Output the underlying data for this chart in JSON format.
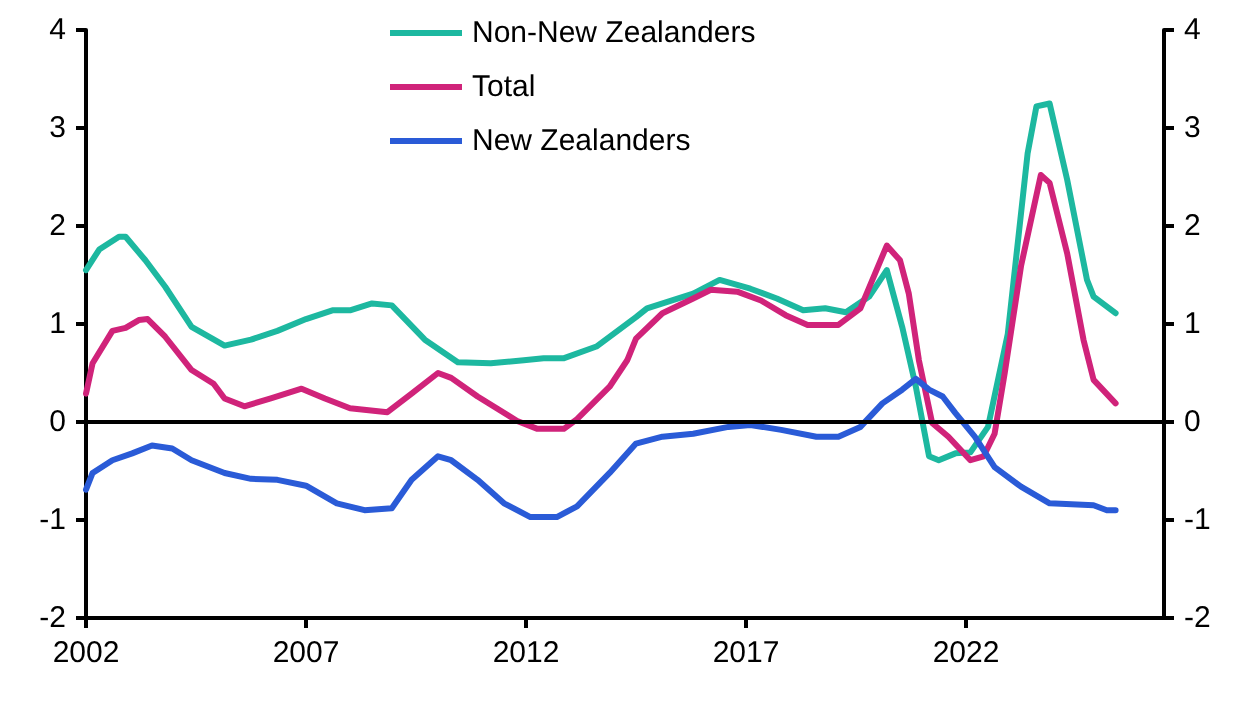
{
  "chart_data": {
    "type": "line",
    "xlim": [
      2002,
      2026.5
    ],
    "xticks": [
      2002,
      2007,
      2012,
      2017,
      2022
    ],
    "ylim": [
      -2,
      4
    ],
    "yticks": [
      -2,
      -1,
      0,
      1,
      2,
      3,
      4
    ],
    "y2lim": [
      -2,
      4
    ],
    "y2ticks": [
      -2,
      -1,
      0,
      1,
      2,
      3,
      4
    ],
    "grid": false,
    "legend": "top",
    "marker": "none",
    "line_style": "solid",
    "ref_lines": [
      {
        "axis": "y",
        "value": 0,
        "color": "#000000"
      }
    ],
    "series": [
      {
        "name": "Non-New Zealanders",
        "color": "#1db8a0",
        "x": [
          2002.0,
          2002.3,
          2002.75,
          2002.9,
          2003.35,
          2003.8,
          2004.4,
          2005.15,
          2005.75,
          2006.35,
          2007.0,
          2007.6,
          2008.0,
          2008.5,
          2008.95,
          2009.7,
          2010.45,
          2011.2,
          2011.95,
          2012.4,
          2012.85,
          2013.6,
          2014.5,
          2014.75,
          2015.8,
          2016.4,
          2017.1,
          2017.7,
          2018.3,
          2018.8,
          2019.27,
          2019.8,
          2020.2,
          2020.55,
          2020.86,
          2021.16,
          2021.38,
          2021.76,
          2022.1,
          2022.5,
          2022.95,
          2023.4,
          2023.6,
          2023.9,
          2024.3,
          2024.75,
          2024.9,
          2025.4
        ],
        "values": [
          1.55,
          1.76,
          1.89,
          1.89,
          1.65,
          1.38,
          0.97,
          0.78,
          0.84,
          0.93,
          1.05,
          1.14,
          1.14,
          1.21,
          1.19,
          0.84,
          0.61,
          0.6,
          0.63,
          0.65,
          0.65,
          0.77,
          1.07,
          1.16,
          1.31,
          1.45,
          1.36,
          1.26,
          1.14,
          1.16,
          1.12,
          1.28,
          1.55,
          0.97,
          0.36,
          -0.35,
          -0.39,
          -0.32,
          -0.31,
          -0.05,
          0.9,
          2.74,
          3.22,
          3.25,
          2.47,
          1.45,
          1.28,
          1.11
        ]
      },
      {
        "name": "Total",
        "color": "#d0237a",
        "x": [
          2002.0,
          2002.15,
          2002.6,
          2002.9,
          2003.2,
          2003.4,
          2003.8,
          2004.4,
          2004.9,
          2005.15,
          2005.6,
          2006.2,
          2006.9,
          2007.43,
          2008.0,
          2008.85,
          2009.4,
          2010.0,
          2010.3,
          2010.9,
          2011.8,
          2012.26,
          2012.86,
          2013.16,
          2013.9,
          2014.3,
          2014.5,
          2015.1,
          2015.8,
          2016.2,
          2016.8,
          2017.34,
          2017.9,
          2018.4,
          2019.1,
          2019.6,
          2020.2,
          2020.5,
          2020.7,
          2020.93,
          2021.23,
          2021.6,
          2022.1,
          2022.4,
          2022.65,
          2022.88,
          2023.25,
          2023.7,
          2023.9,
          2024.3,
          2024.67,
          2024.9,
          2025.4
        ],
        "values": [
          0.29,
          0.6,
          0.93,
          0.96,
          1.04,
          1.05,
          0.87,
          0.53,
          0.39,
          0.24,
          0.16,
          0.24,
          0.34,
          0.24,
          0.14,
          0.1,
          0.29,
          0.5,
          0.45,
          0.26,
          0.01,
          -0.07,
          -0.07,
          0.03,
          0.36,
          0.63,
          0.85,
          1.11,
          1.26,
          1.35,
          1.33,
          1.24,
          1.09,
          0.99,
          0.99,
          1.16,
          1.8,
          1.65,
          1.31,
          0.63,
          -0.01,
          -0.15,
          -0.39,
          -0.35,
          -0.12,
          0.5,
          1.59,
          2.52,
          2.44,
          1.72,
          0.84,
          0.43,
          0.19
        ]
      },
      {
        "name": "New Zealanders",
        "color": "#2a5bd7",
        "x": [
          2002.0,
          2002.15,
          2002.6,
          2003.05,
          2003.5,
          2003.96,
          2004.4,
          2005.15,
          2005.75,
          2006.35,
          2007.0,
          2007.7,
          2008.33,
          2008.95,
          2009.4,
          2010.0,
          2010.3,
          2010.9,
          2011.5,
          2012.1,
          2012.7,
          2013.16,
          2013.9,
          2014.5,
          2015.1,
          2015.8,
          2016.6,
          2017.1,
          2017.8,
          2018.6,
          2019.1,
          2019.6,
          2020.1,
          2020.55,
          2020.86,
          2021.16,
          2021.47,
          2021.76,
          2022.2,
          2022.65,
          2023.25,
          2023.9,
          2024.9,
          2025.2,
          2025.4
        ],
        "values": [
          -0.69,
          -0.52,
          -0.39,
          -0.32,
          -0.24,
          -0.27,
          -0.39,
          -0.52,
          -0.58,
          -0.59,
          -0.65,
          -0.83,
          -0.9,
          -0.88,
          -0.59,
          -0.35,
          -0.39,
          -0.59,
          -0.83,
          -0.97,
          -0.97,
          -0.86,
          -0.52,
          -0.22,
          -0.15,
          -0.12,
          -0.05,
          -0.03,
          -0.08,
          -0.15,
          -0.15,
          -0.05,
          0.19,
          0.33,
          0.44,
          0.33,
          0.26,
          0.09,
          -0.15,
          -0.46,
          -0.66,
          -0.83,
          -0.85,
          -0.9,
          -0.9
        ]
      }
    ]
  }
}
